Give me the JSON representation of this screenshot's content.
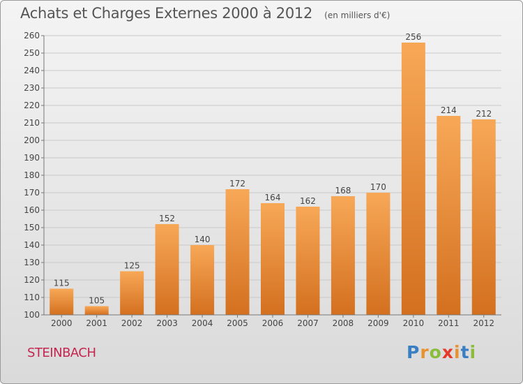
{
  "title": "Achats et Charges Externes 2000 à 2012",
  "subtitle": "(en milliers d'€)",
  "location": "STEINBACH",
  "logo": {
    "letters": [
      "P",
      "r",
      "o",
      "x",
      "i",
      "t",
      "i"
    ],
    "colors": [
      "#3a7fc4",
      "#e8912e",
      "#8bbd3c",
      "#e53a2a",
      "#e8912e",
      "#3a7fc4",
      "#8bbd3c"
    ]
  },
  "chart_data": {
    "type": "bar",
    "categories": [
      "2000",
      "2001",
      "2002",
      "2003",
      "2004",
      "2005",
      "2006",
      "2007",
      "2008",
      "2009",
      "2010",
      "2011",
      "2012"
    ],
    "values": [
      115,
      105,
      125,
      152,
      140,
      172,
      164,
      162,
      168,
      170,
      256,
      214,
      212
    ],
    "ylim": [
      100,
      260
    ],
    "yticks": [
      100,
      110,
      120,
      130,
      140,
      150,
      160,
      170,
      180,
      190,
      200,
      210,
      220,
      230,
      240,
      250,
      260
    ],
    "grid": true,
    "bar_color_top": "#f7a857",
    "bar_color_bottom": "#d3701f",
    "label_color": "#444444"
  }
}
